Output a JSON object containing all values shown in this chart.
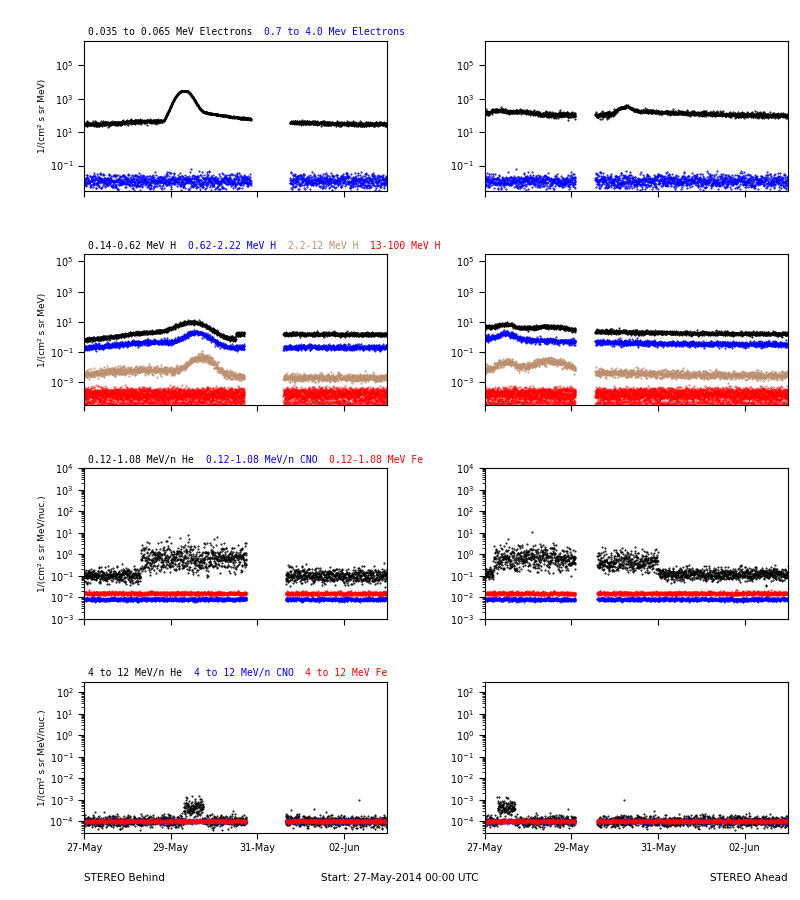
{
  "title_row1_black": "0.035 to 0.065 MeV Electrons",
  "title_row1_blue": "0.7 to 4.0 Mev Electrons",
  "title_row2_black": "0.14-0.62 MeV H",
  "title_row2_blue": "0.62-2.22 MeV H",
  "title_row2_tan": "2.2-12 MeV H",
  "title_row2_red": "13-100 MeV H",
  "title_row3_black": "0.12-1.08 MeV/n He",
  "title_row3_blue": "0.12-1.08 MeV/n CNO",
  "title_row3_red": "0.12-1.08 MeV Fe",
  "title_row4_black": "4 to 12 MeV/n He",
  "title_row4_blue": "4 to 12 MeV/n CNO",
  "title_row4_red": "4 to 12 MeV Fe",
  "xlabel_left": "STEREO Behind",
  "xlabel_center": "Start: 27-May-2014 00:00 UTC",
  "xlabel_right": "STEREO Ahead",
  "ylabel_r1": "1/(cm² s sr MeV)",
  "ylabel_r2": "1/(cm² s sr MeV)",
  "ylabel_r3": "1/(cm² s sr MeV/nuc.)",
  "ylabel_r4": "1/(cm² s sr MeV/nuc.)",
  "xtick_labels": [
    "27-May",
    "29-May",
    "31-May",
    "02-Jun"
  ],
  "bg_color": "#ffffff",
  "row1_ylim": [
    0.003,
    3000000.0
  ],
  "row2_ylim": [
    3e-05,
    300000.0
  ],
  "row3_ylim": [
    0.001,
    10000.0
  ],
  "row4_ylim": [
    3e-05,
    300.0
  ],
  "tan_color": "#bc8f6f",
  "seed": 42
}
